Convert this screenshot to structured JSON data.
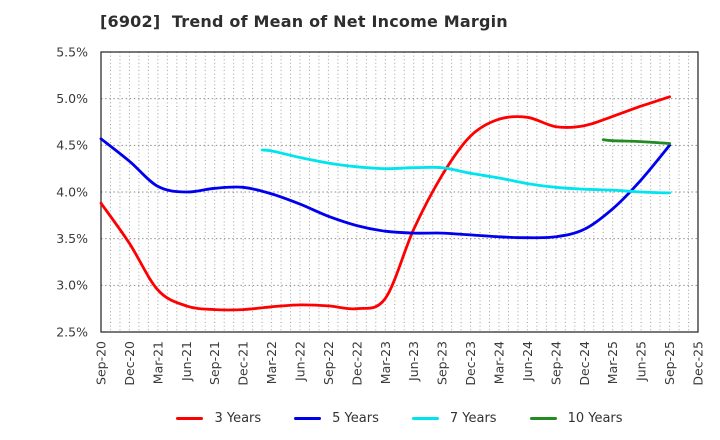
{
  "chart": {
    "title": "[6902]  Trend of Mean of Net Income Margin"
  },
  "chart_data": {
    "type": "line",
    "title": "[6902]  Trend of Mean of Net Income Margin",
    "x_categories": [
      "Sep-20",
      "Dec-20",
      "Mar-21",
      "Jun-21",
      "Sep-21",
      "Dec-21",
      "Mar-22",
      "Jun-22",
      "Sep-22",
      "Dec-22",
      "Mar-23",
      "Jun-23",
      "Sep-23",
      "Dec-23",
      "Mar-24",
      "Jun-24",
      "Sep-24",
      "Dec-24",
      "Mar-25",
      "Jun-25",
      "Sep-25",
      "Dec-25"
    ],
    "ylim": [
      2.5,
      5.5
    ],
    "ytick_step": 0.5,
    "ytick_labels": [
      "5.5%",
      "5.0%",
      "4.5%",
      "4.0%",
      "3.5%",
      "3.0%",
      "2.5%"
    ],
    "grid": "dotted; horizontal every 0.5%, vertical minor monthly",
    "legend_position": "bottom-center",
    "frame_color": "#2f2f2f",
    "grid_color": "#a0a0a0",
    "tick_label_color": "#3a3a3a",
    "series": [
      {
        "name": "3 Years",
        "color": "#ff0000",
        "points": [
          [
            0,
            3.88
          ],
          [
            1,
            3.45
          ],
          [
            2,
            2.95
          ],
          [
            3,
            2.78
          ],
          [
            4,
            2.74
          ],
          [
            5,
            2.74
          ],
          [
            6,
            2.77
          ],
          [
            7,
            2.79
          ],
          [
            8,
            2.78
          ],
          [
            9,
            2.75
          ],
          [
            10,
            2.86
          ],
          [
            11,
            3.6
          ],
          [
            12,
            4.18
          ],
          [
            13,
            4.6
          ],
          [
            14,
            4.78
          ],
          [
            15,
            4.8
          ],
          [
            16,
            4.7
          ],
          [
            17,
            4.71
          ],
          [
            18,
            4.81
          ],
          [
            19,
            4.92
          ],
          [
            20,
            5.02
          ]
        ]
      },
      {
        "name": "5 Years",
        "color": "#0000ee",
        "points": [
          [
            0,
            4.57
          ],
          [
            1,
            4.33
          ],
          [
            2,
            4.06
          ],
          [
            3,
            4.0
          ],
          [
            4,
            4.04
          ],
          [
            5,
            4.05
          ],
          [
            6,
            3.98
          ],
          [
            7,
            3.87
          ],
          [
            8,
            3.74
          ],
          [
            9,
            3.64
          ],
          [
            10,
            3.58
          ],
          [
            11,
            3.56
          ],
          [
            12,
            3.56
          ],
          [
            13,
            3.54
          ],
          [
            14,
            3.52
          ],
          [
            15,
            3.51
          ],
          [
            16,
            3.52
          ],
          [
            17,
            3.6
          ],
          [
            18,
            3.82
          ],
          [
            19,
            4.13
          ],
          [
            20,
            4.5
          ]
        ]
      },
      {
        "name": "7 Years",
        "color": "#00e4ee",
        "points": [
          [
            5.67,
            4.45
          ],
          [
            6,
            4.44
          ],
          [
            7,
            4.37
          ],
          [
            8,
            4.31
          ],
          [
            9,
            4.27
          ],
          [
            10,
            4.25
          ],
          [
            11,
            4.26
          ],
          [
            12,
            4.26
          ],
          [
            13,
            4.2
          ],
          [
            14,
            4.15
          ],
          [
            15,
            4.09
          ],
          [
            16,
            4.05
          ],
          [
            17,
            4.03
          ],
          [
            18,
            4.02
          ],
          [
            19,
            4.0
          ],
          [
            20,
            3.99
          ]
        ]
      },
      {
        "name": "10 Years",
        "color": "#228b22",
        "points": [
          [
            17.67,
            4.56
          ],
          [
            18,
            4.55
          ],
          [
            19,
            4.54
          ],
          [
            20,
            4.52
          ]
        ]
      }
    ]
  }
}
